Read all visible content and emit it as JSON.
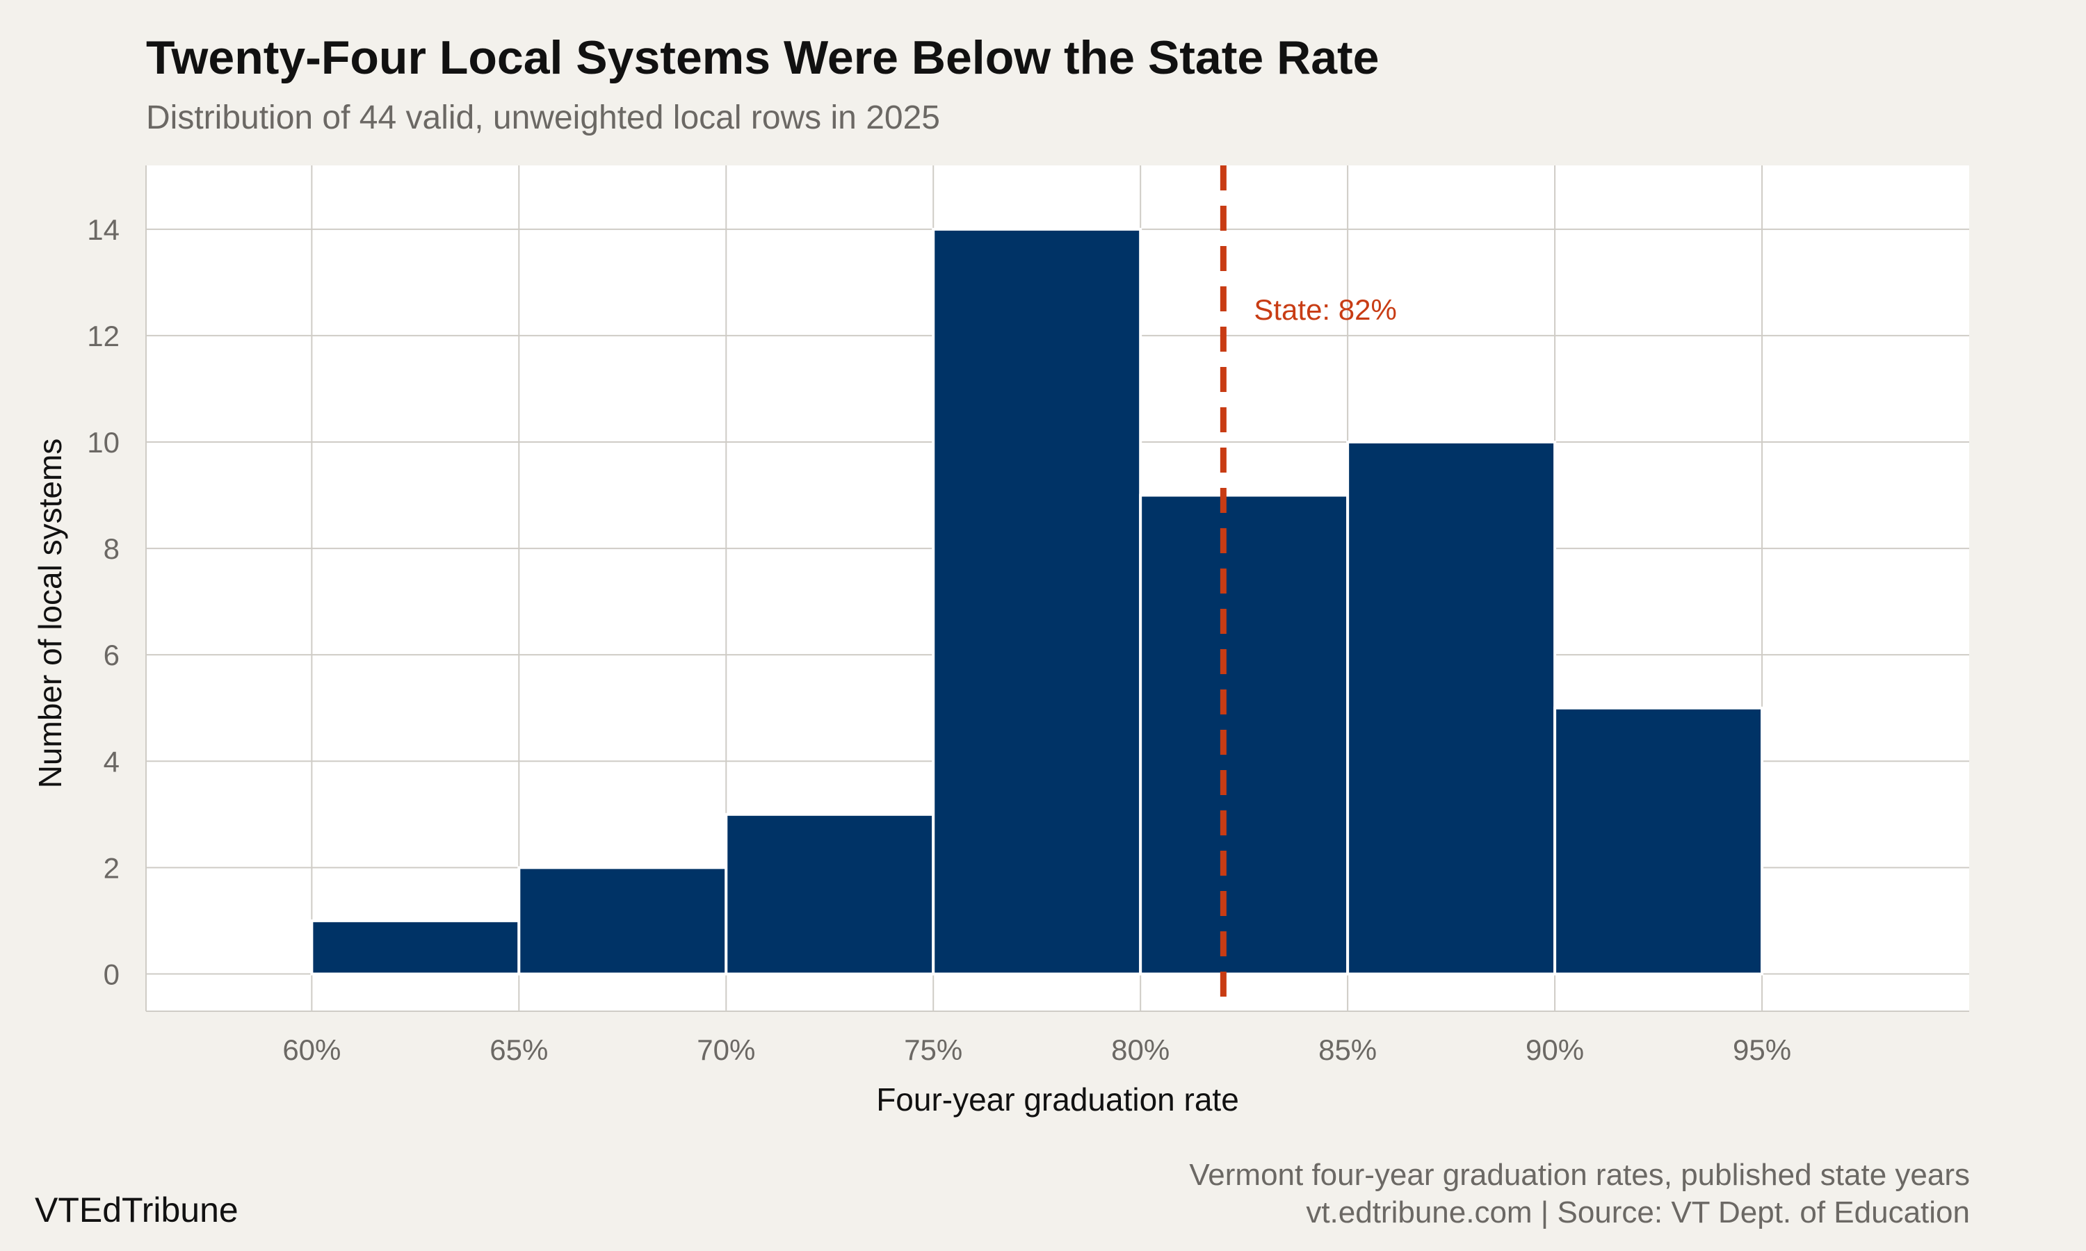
{
  "header": {
    "title": "Twenty-Four Local Systems Were Below the State Rate",
    "subtitle": "Distribution of 44 valid, unweighted local rows in 2025"
  },
  "footer": {
    "brand": "VTEdTribune",
    "line1": "Vermont four-year graduation rates, published state years",
    "line2": "vt.edtribune.com | Source: VT Dept. of Education"
  },
  "colors": {
    "background": "#f3f1ec",
    "panel": "#ffffff",
    "bar": "#003366",
    "reference_line": "#c83c14",
    "grid": "#cfccc6",
    "axis_text": "#6b6864"
  },
  "chart_data": {
    "type": "bar",
    "title": "Twenty-Four Local Systems Were Below the State Rate",
    "subtitle": "Distribution of 44 valid, unweighted local rows in 2025",
    "xlabel": "Four-year graduation rate",
    "ylabel": "Number of local systems",
    "bins": [
      {
        "from": 60,
        "to": 65,
        "count": 1
      },
      {
        "from": 65,
        "to": 70,
        "count": 2
      },
      {
        "from": 70,
        "to": 75,
        "count": 3
      },
      {
        "from": 75,
        "to": 80,
        "count": 14
      },
      {
        "from": 80,
        "to": 85,
        "count": 9
      },
      {
        "from": 85,
        "to": 90,
        "count": 10
      },
      {
        "from": 90,
        "to": 95,
        "count": 5
      }
    ],
    "xlim": [
      56,
      100
    ],
    "ylim": [
      -0.7,
      15.2
    ],
    "x_ticks": [
      60,
      65,
      70,
      75,
      80,
      85,
      90,
      95
    ],
    "x_tick_labels": [
      "60%",
      "65%",
      "70%",
      "75%",
      "80%",
      "85%",
      "90%",
      "95%"
    ],
    "y_ticks": [
      0,
      2,
      4,
      6,
      8,
      10,
      12,
      14
    ],
    "y_tick_labels": [
      "0",
      "2",
      "4",
      "6",
      "8",
      "10",
      "12",
      "14"
    ],
    "reference_line": {
      "x": 82,
      "label": "State: 82%",
      "style": "dashed"
    },
    "grid": true,
    "legend": "none"
  }
}
